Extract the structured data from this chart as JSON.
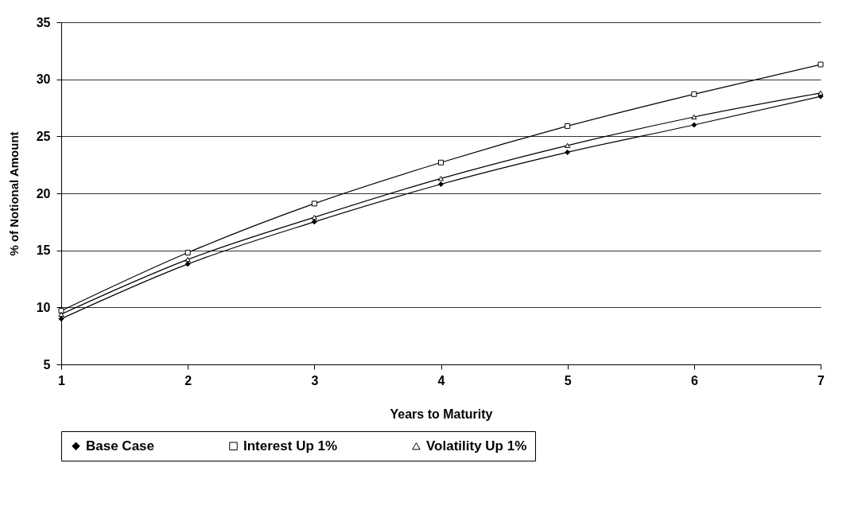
{
  "chart_data": {
    "type": "line",
    "xlabel": "Years to Maturity",
    "ylabel": "% of Notional Amount",
    "x": [
      1,
      2,
      3,
      4,
      5,
      6,
      7
    ],
    "series": [
      {
        "name": "Base Case",
        "color": "#000000",
        "marker": "diamond",
        "values": [
          9.0,
          13.8,
          17.5,
          20.8,
          23.6,
          26.0,
          28.5
        ]
      },
      {
        "name": "Interest Up 1%",
        "color": "#000000",
        "marker": "square",
        "values": [
          9.7,
          14.8,
          19.1,
          22.7,
          25.9,
          28.7,
          31.3
        ]
      },
      {
        "name": "Volatility Up 1%",
        "color": "#000000",
        "marker": "triangle",
        "values": [
          9.4,
          14.2,
          17.9,
          21.3,
          24.2,
          26.7,
          28.8
        ]
      }
    ],
    "xlim": [
      1,
      7
    ],
    "xticks": [
      1,
      2,
      3,
      4,
      5,
      6,
      7
    ],
    "ylim": [
      5,
      35
    ],
    "yticks": [
      5,
      10,
      15,
      20,
      25,
      30,
      35
    ],
    "grid": "y",
    "legend": "bottom",
    "line_style": "solid"
  }
}
